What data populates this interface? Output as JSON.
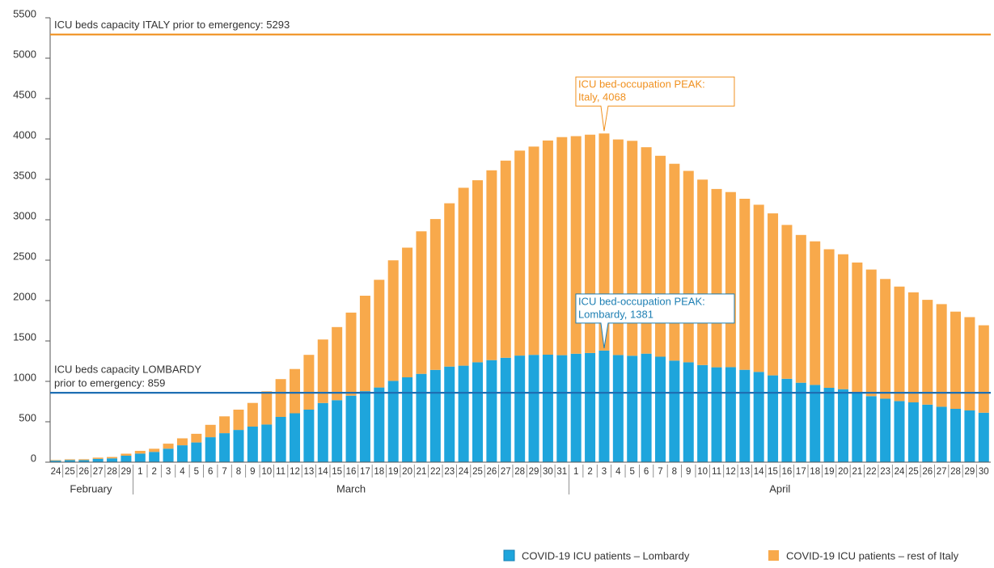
{
  "chart_data": {
    "type": "stacked_bar",
    "categories": [
      "24",
      "25",
      "26",
      "27",
      "28",
      "29",
      "1",
      "2",
      "3",
      "4",
      "5",
      "6",
      "7",
      "8",
      "9",
      "10",
      "11",
      "12",
      "13",
      "14",
      "15",
      "16",
      "17",
      "18",
      "19",
      "20",
      "21",
      "22",
      "23",
      "24",
      "25",
      "26",
      "27",
      "28",
      "29",
      "30",
      "31",
      "1",
      "2",
      "3",
      "4",
      "5",
      "6",
      "7",
      "8",
      "9",
      "10",
      "11",
      "12",
      "13",
      "14",
      "15",
      "16",
      "17",
      "18",
      "19",
      "20",
      "21",
      "22",
      "23",
      "24",
      "25",
      "26",
      "27",
      "28",
      "29",
      "30"
    ],
    "months": [
      "February",
      "March",
      "April"
    ],
    "series": [
      {
        "name": "COVID-19 ICU patients – Lombardy",
        "color": "#1ea5dc",
        "values": [
          19,
          25,
          25,
          41,
          47,
          80,
          106,
          127,
          167,
          209,
          244,
          309,
          359,
          399,
          440,
          466,
          560,
          605,
          650,
          732,
          767,
          823,
          879,
          924,
          1006,
          1050,
          1093,
          1142,
          1183,
          1194,
          1236,
          1263,
          1292,
          1319,
          1328,
          1330,
          1324,
          1342,
          1351,
          1381,
          1326,
          1317,
          1343,
          1305,
          1257,
          1236,
          1202,
          1174,
          1176,
          1143,
          1117,
          1074,
          1032,
          983,
          956,
          920,
          903,
          863,
          817,
          785,
          756,
          740,
          712,
          686,
          660,
          640,
          612
        ]
      },
      {
        "name": "COVID-19 ICU patients – rest of Italy",
        "color": "#f8a94b",
        "values": [
          7,
          10,
          11,
          15,
          17,
          25,
          34,
          39,
          62,
          86,
          107,
          153,
          208,
          251,
          293,
          411,
          468,
          548,
          678,
          786,
          905,
          1028,
          1181,
          1333,
          1492,
          1605,
          1764,
          1867,
          2021,
          2202,
          2253,
          2349,
          2440,
          2537,
          2578,
          2651,
          2699,
          2693,
          2702,
          2687,
          2668,
          2660,
          2555,
          2487,
          2436,
          2369,
          2295,
          2207,
          2167,
          2117,
          2069,
          2005,
          1904,
          1829,
          1777,
          1715,
          1670,
          1608,
          1567,
          1482,
          1417,
          1362,
          1297,
          1270,
          1203,
          1155,
          1082
        ]
      }
    ],
    "ylim": [
      0,
      5500
    ],
    "yticks": [
      0,
      500,
      1000,
      1500,
      2000,
      2500,
      3000,
      3500,
      4000,
      4500,
      5000,
      5500
    ],
    "reference_lines": [
      {
        "value": 5293,
        "color": "#f0901e",
        "label": [
          "ICU beds capacity ITALY prior to emergency: 5293"
        ]
      },
      {
        "value": 859,
        "color": "#1e6fb3",
        "label": [
          "ICU beds capacity LOMBARDY",
          "prior to emergency: 859"
        ]
      }
    ],
    "annotations": [
      {
        "series": "total",
        "color": "#f0901e",
        "text": [
          "ICU bed-occupation PEAK:",
          "Italy, 4068"
        ]
      },
      {
        "series": "first",
        "color": "#1e7fb3",
        "text": [
          "ICU bed-occupation PEAK:",
          "Lombardy, 1381"
        ]
      }
    ]
  }
}
